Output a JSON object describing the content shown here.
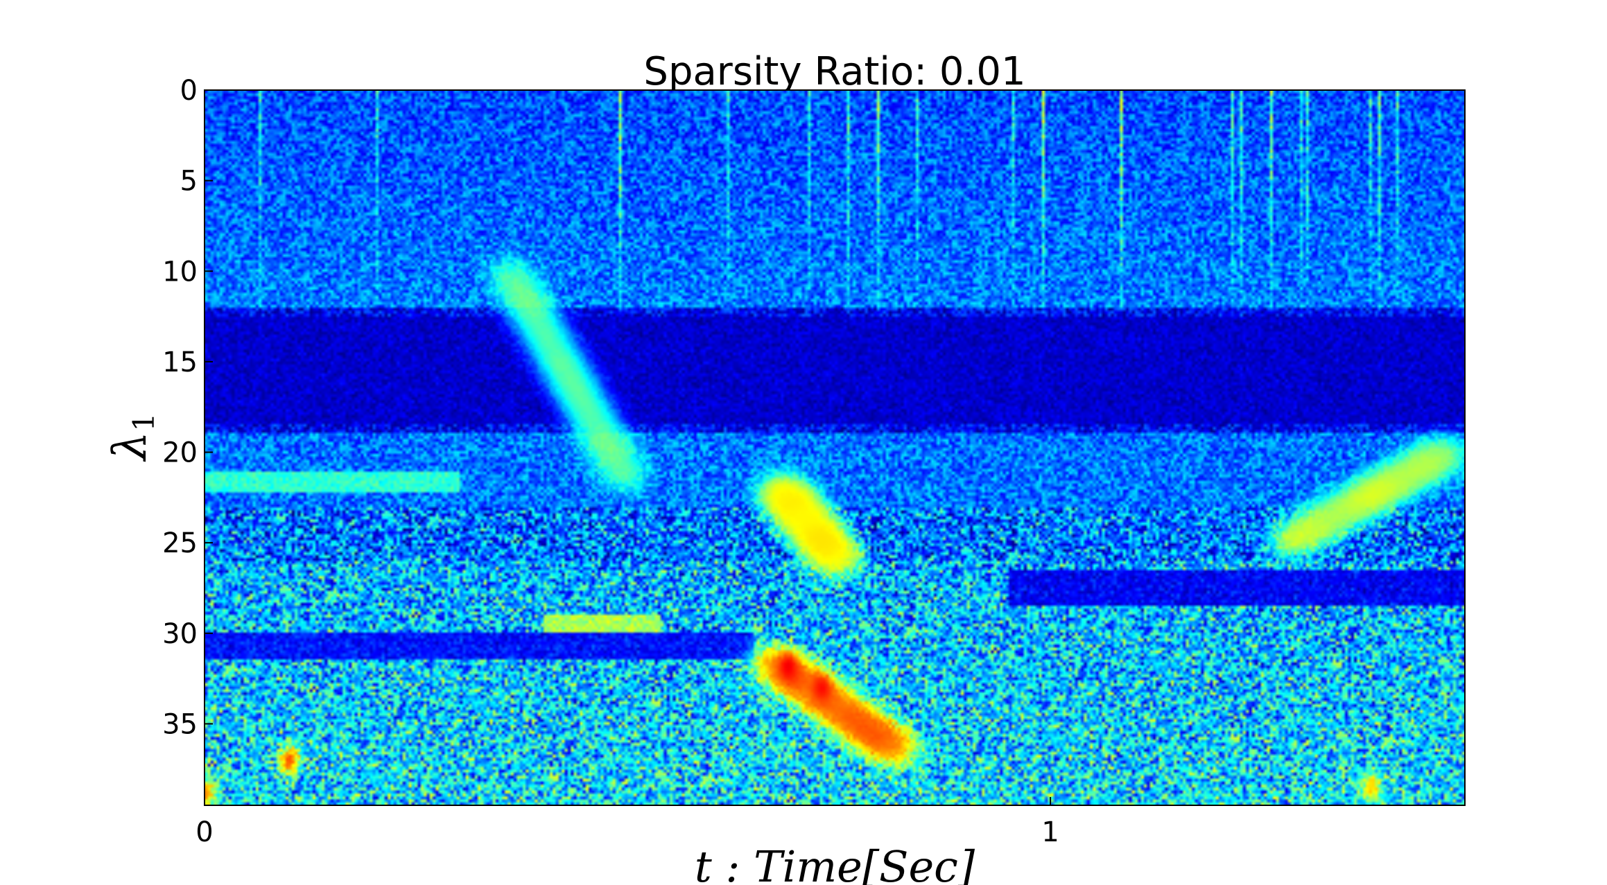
{
  "chart_data": {
    "type": "heatmap",
    "title": "Sparsity Ratio: 0.01",
    "xlabel": "t : Time[Sec]",
    "ylabel": "λ",
    "ylabel_subscript": "1",
    "x_ticks": [
      {
        "value": 0,
        "label": "0"
      },
      {
        "value": 1,
        "label": "1"
      }
    ],
    "y_ticks": [
      {
        "value": 0,
        "label": "0"
      },
      {
        "value": 5,
        "label": "5"
      },
      {
        "value": 10,
        "label": "10"
      },
      {
        "value": 15,
        "label": "15"
      },
      {
        "value": 20,
        "label": "20"
      },
      {
        "value": 25,
        "label": "25"
      },
      {
        "value": 30,
        "label": "30"
      },
      {
        "value": 35,
        "label": "35"
      }
    ],
    "xlim": [
      0,
      1.49
    ],
    "ylim": [
      39.5,
      0
    ],
    "y_inverted": true,
    "colormap": "jet",
    "colors": {
      "low": "#00008f",
      "mid_low": "#0050ff",
      "mid": "#00e0ff",
      "mid_high": "#e0ff20",
      "high": "#ff3000",
      "max": "#800000"
    },
    "grid": false,
    "features": [
      {
        "kind": "dark_band",
        "y_from": 12.5,
        "y_to": 18.5,
        "x_from": 0.0,
        "x_to": 1.49,
        "level": 0.06
      },
      {
        "kind": "dark_band",
        "y_from": 26.5,
        "y_to": 28.5,
        "x_from": 0.95,
        "x_to": 1.49,
        "level": 0.06
      },
      {
        "kind": "dark_band",
        "y_from": 30.0,
        "y_to": 31.5,
        "x_from": 0.0,
        "x_to": 0.65,
        "level": 0.08
      },
      {
        "kind": "bright_band",
        "y_from": 29.0,
        "y_to": 30.0,
        "x_from": 0.4,
        "x_to": 0.54,
        "level": 0.62
      },
      {
        "kind": "bright_band",
        "y_from": 21.0,
        "y_to": 22.2,
        "x_from": 0.0,
        "x_to": 0.3,
        "level": 0.48
      },
      {
        "kind": "diagonal_streak",
        "x0": 0.67,
        "y0": 31.5,
        "x1": 0.82,
        "y1": 36.5,
        "level": 0.85
      },
      {
        "kind": "diagonal_streak",
        "x0": 0.36,
        "y0": 10.0,
        "x1": 0.5,
        "y1": 21.5,
        "level": 0.6
      },
      {
        "kind": "diagonal_streak",
        "x0": 0.68,
        "y0": 22.0,
        "x1": 0.75,
        "y1": 26.0,
        "level": 0.72
      },
      {
        "kind": "diagonal_streak",
        "x0": 1.28,
        "y0": 25.0,
        "x1": 1.47,
        "y1": 20.0,
        "level": 0.66
      },
      {
        "kind": "hot_spot",
        "x": 0.1,
        "y": 37.0,
        "level": 0.85
      },
      {
        "kind": "hot_spot",
        "x": 0.69,
        "y": 31.8,
        "level": 0.9
      },
      {
        "kind": "hot_spot",
        "x": 0.73,
        "y": 33.0,
        "level": 0.88
      },
      {
        "kind": "hot_spot",
        "x": 0.0,
        "y": 38.8,
        "level": 0.8
      },
      {
        "kind": "hot_spot",
        "x": 1.38,
        "y": 38.5,
        "level": 0.7
      }
    ]
  }
}
